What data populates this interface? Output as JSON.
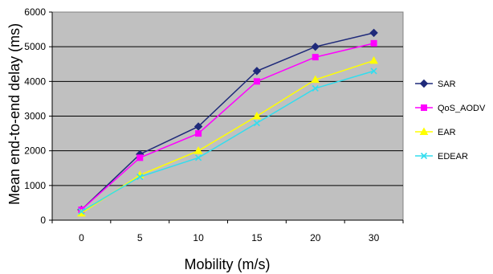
{
  "chart_data": {
    "type": "line",
    "categories": [
      "0",
      "5",
      "10",
      "15",
      "20",
      "30"
    ],
    "xlabel": "Mobility (m/s)",
    "ylabel": "Mean end-to-end delay (ms)",
    "ylim": [
      0,
      6000
    ],
    "yticks": [
      "0",
      "1000",
      "2000",
      "3000",
      "4000",
      "5000",
      "6000"
    ],
    "grid": true,
    "legend_position": "right",
    "plot_background": "#c0c0c0",
    "series": [
      {
        "name": "SAR",
        "color": "#1f2a7a",
        "marker": "diamond",
        "values": [
          300,
          1900,
          2700,
          4300,
          5000,
          5400
        ]
      },
      {
        "name": "QoS_AODV",
        "color": "#ff00ff",
        "marker": "square",
        "values": [
          300,
          1800,
          2500,
          4000,
          4700,
          5100
        ]
      },
      {
        "name": "EAR",
        "color": "#ffff00",
        "marker": "triangle",
        "values": [
          200,
          1300,
          2000,
          3000,
          4050,
          4600
        ]
      },
      {
        "name": "EDEAR",
        "color": "#33ddee",
        "marker": "x",
        "values": [
          250,
          1250,
          1800,
          2800,
          3800,
          4300
        ]
      }
    ]
  }
}
